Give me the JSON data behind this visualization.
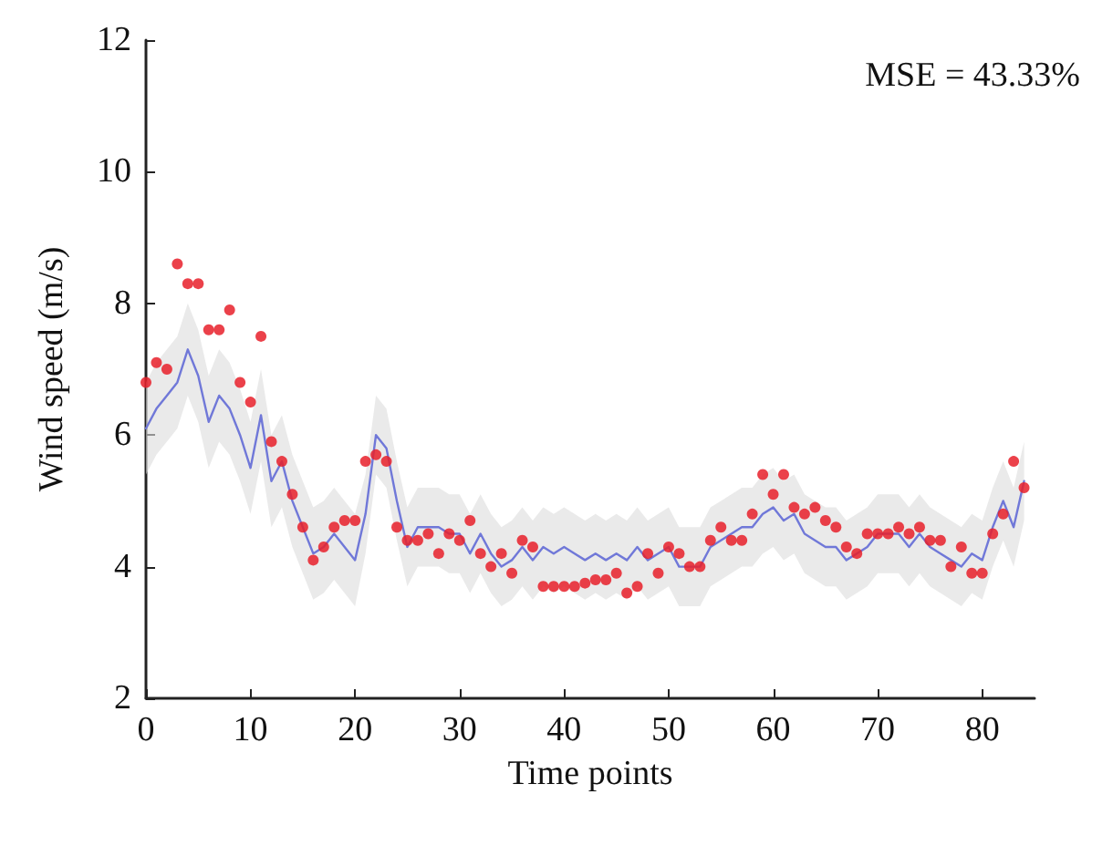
{
  "chart_data": {
    "type": "line",
    "xlabel": "Time points",
    "ylabel": "Wind speed (m/s)",
    "annotations": [
      "MSE = 43.33%"
    ],
    "xlim": [
      0,
      85
    ],
    "xticks": [
      0,
      10,
      20,
      30,
      40,
      50,
      60,
      70,
      80
    ],
    "ylim": [
      2,
      12
    ],
    "yticks": [
      2,
      4,
      6,
      8,
      10,
      12
    ],
    "grid": false,
    "x": [
      0,
      1,
      2,
      3,
      4,
      5,
      6,
      7,
      8,
      9,
      10,
      11,
      12,
      13,
      14,
      15,
      16,
      17,
      18,
      19,
      20,
      21,
      22,
      23,
      24,
      25,
      26,
      27,
      28,
      29,
      30,
      31,
      32,
      33,
      34,
      35,
      36,
      37,
      38,
      39,
      40,
      41,
      42,
      43,
      44,
      45,
      46,
      47,
      48,
      49,
      50,
      51,
      52,
      53,
      54,
      55,
      56,
      57,
      58,
      59,
      60,
      61,
      62,
      63,
      64,
      65,
      66,
      67,
      68,
      69,
      70,
      71,
      72,
      73,
      74,
      75,
      76,
      77,
      78,
      79,
      80,
      81,
      82,
      83,
      84
    ],
    "series": [
      {
        "color": "#7078d8",
        "marker": "none",
        "line_style": "solid",
        "values": [
          6.1,
          6.4,
          6.6,
          6.8,
          7.3,
          6.9,
          6.2,
          6.6,
          6.4,
          6.0,
          5.5,
          6.3,
          5.3,
          5.6,
          5.0,
          4.6,
          4.2,
          4.3,
          4.5,
          4.3,
          4.1,
          4.8,
          6.0,
          5.8,
          5.0,
          4.3,
          4.6,
          4.6,
          4.6,
          4.5,
          4.5,
          4.2,
          4.5,
          4.2,
          4.0,
          4.1,
          4.3,
          4.1,
          4.3,
          4.2,
          4.3,
          4.2,
          4.1,
          4.2,
          4.1,
          4.2,
          4.1,
          4.3,
          4.1,
          4.2,
          4.3,
          4.0,
          4.0,
          4.0,
          4.3,
          4.4,
          4.5,
          4.6,
          4.6,
          4.8,
          4.9,
          4.7,
          4.8,
          4.5,
          4.4,
          4.3,
          4.3,
          4.1,
          4.2,
          4.3,
          4.5,
          4.5,
          4.5,
          4.3,
          4.5,
          4.3,
          4.2,
          4.1,
          4.0,
          4.2,
          4.1,
          4.6,
          5.0,
          4.6,
          5.3
        ],
        "upper": [
          6.8,
          7.1,
          7.3,
          7.5,
          8.0,
          7.6,
          6.9,
          7.3,
          7.1,
          6.7,
          6.2,
          7.0,
          6.0,
          6.3,
          5.7,
          5.3,
          4.9,
          5.0,
          5.2,
          5.0,
          4.8,
          5.4,
          6.6,
          6.4,
          5.6,
          4.9,
          5.2,
          5.2,
          5.2,
          5.1,
          5.1,
          4.8,
          5.1,
          4.8,
          4.6,
          4.7,
          4.9,
          4.7,
          4.9,
          4.8,
          4.9,
          4.8,
          4.7,
          4.8,
          4.7,
          4.8,
          4.7,
          4.9,
          4.7,
          4.8,
          4.9,
          4.6,
          4.6,
          4.6,
          4.9,
          5.0,
          5.1,
          5.2,
          5.2,
          5.4,
          5.5,
          5.3,
          5.4,
          5.1,
          5.0,
          4.9,
          4.9,
          4.7,
          4.8,
          4.9,
          5.1,
          5.1,
          5.1,
          4.9,
          5.1,
          4.9,
          4.8,
          4.7,
          4.6,
          4.8,
          4.7,
          5.2,
          5.6,
          5.2,
          5.9
        ],
        "lower": [
          5.4,
          5.7,
          5.9,
          6.1,
          6.6,
          6.2,
          5.5,
          5.9,
          5.7,
          5.3,
          4.8,
          5.6,
          4.6,
          4.9,
          4.3,
          3.9,
          3.5,
          3.6,
          3.8,
          3.6,
          3.4,
          4.2,
          5.4,
          5.2,
          4.4,
          3.7,
          4.0,
          4.0,
          4.0,
          3.9,
          3.9,
          3.6,
          3.9,
          3.6,
          3.4,
          3.5,
          3.7,
          3.5,
          3.7,
          3.6,
          3.7,
          3.6,
          3.5,
          3.6,
          3.5,
          3.6,
          3.5,
          3.7,
          3.5,
          3.6,
          3.7,
          3.4,
          3.4,
          3.4,
          3.7,
          3.8,
          3.9,
          4.0,
          4.0,
          4.2,
          4.3,
          4.1,
          4.2,
          3.9,
          3.8,
          3.7,
          3.7,
          3.5,
          3.6,
          3.7,
          3.9,
          3.9,
          3.9,
          3.7,
          3.9,
          3.7,
          3.6,
          3.5,
          3.4,
          3.6,
          3.5,
          4.0,
          4.4,
          4.0,
          4.7
        ]
      },
      {
        "type": "scatter",
        "color": "#e8202a",
        "marker": "circle",
        "values": [
          6.8,
          7.1,
          7.0,
          8.6,
          8.3,
          8.3,
          7.6,
          7.6,
          7.9,
          6.8,
          6.5,
          7.5,
          5.9,
          5.6,
          5.1,
          4.6,
          4.1,
          4.3,
          4.6,
          4.7,
          4.7,
          5.6,
          5.7,
          5.6,
          4.6,
          4.4,
          4.4,
          4.5,
          4.2,
          4.5,
          4.4,
          4.7,
          4.2,
          4.0,
          4.2,
          3.9,
          4.4,
          4.3,
          3.7,
          3.7,
          3.7,
          3.7,
          3.75,
          3.8,
          3.8,
          3.9,
          3.6,
          3.7,
          4.2,
          3.9,
          4.3,
          4.2,
          4.0,
          4.0,
          4.4,
          4.6,
          4.4,
          4.4,
          4.8,
          5.4,
          5.1,
          5.4,
          4.9,
          4.8,
          4.9,
          4.7,
          4.6,
          4.3,
          4.2,
          4.5,
          4.5,
          4.5,
          4.6,
          4.5,
          4.6,
          4.4,
          4.4,
          4.0,
          4.3,
          3.9,
          3.9,
          4.5,
          4.8,
          5.6,
          5.2
        ]
      }
    ]
  }
}
